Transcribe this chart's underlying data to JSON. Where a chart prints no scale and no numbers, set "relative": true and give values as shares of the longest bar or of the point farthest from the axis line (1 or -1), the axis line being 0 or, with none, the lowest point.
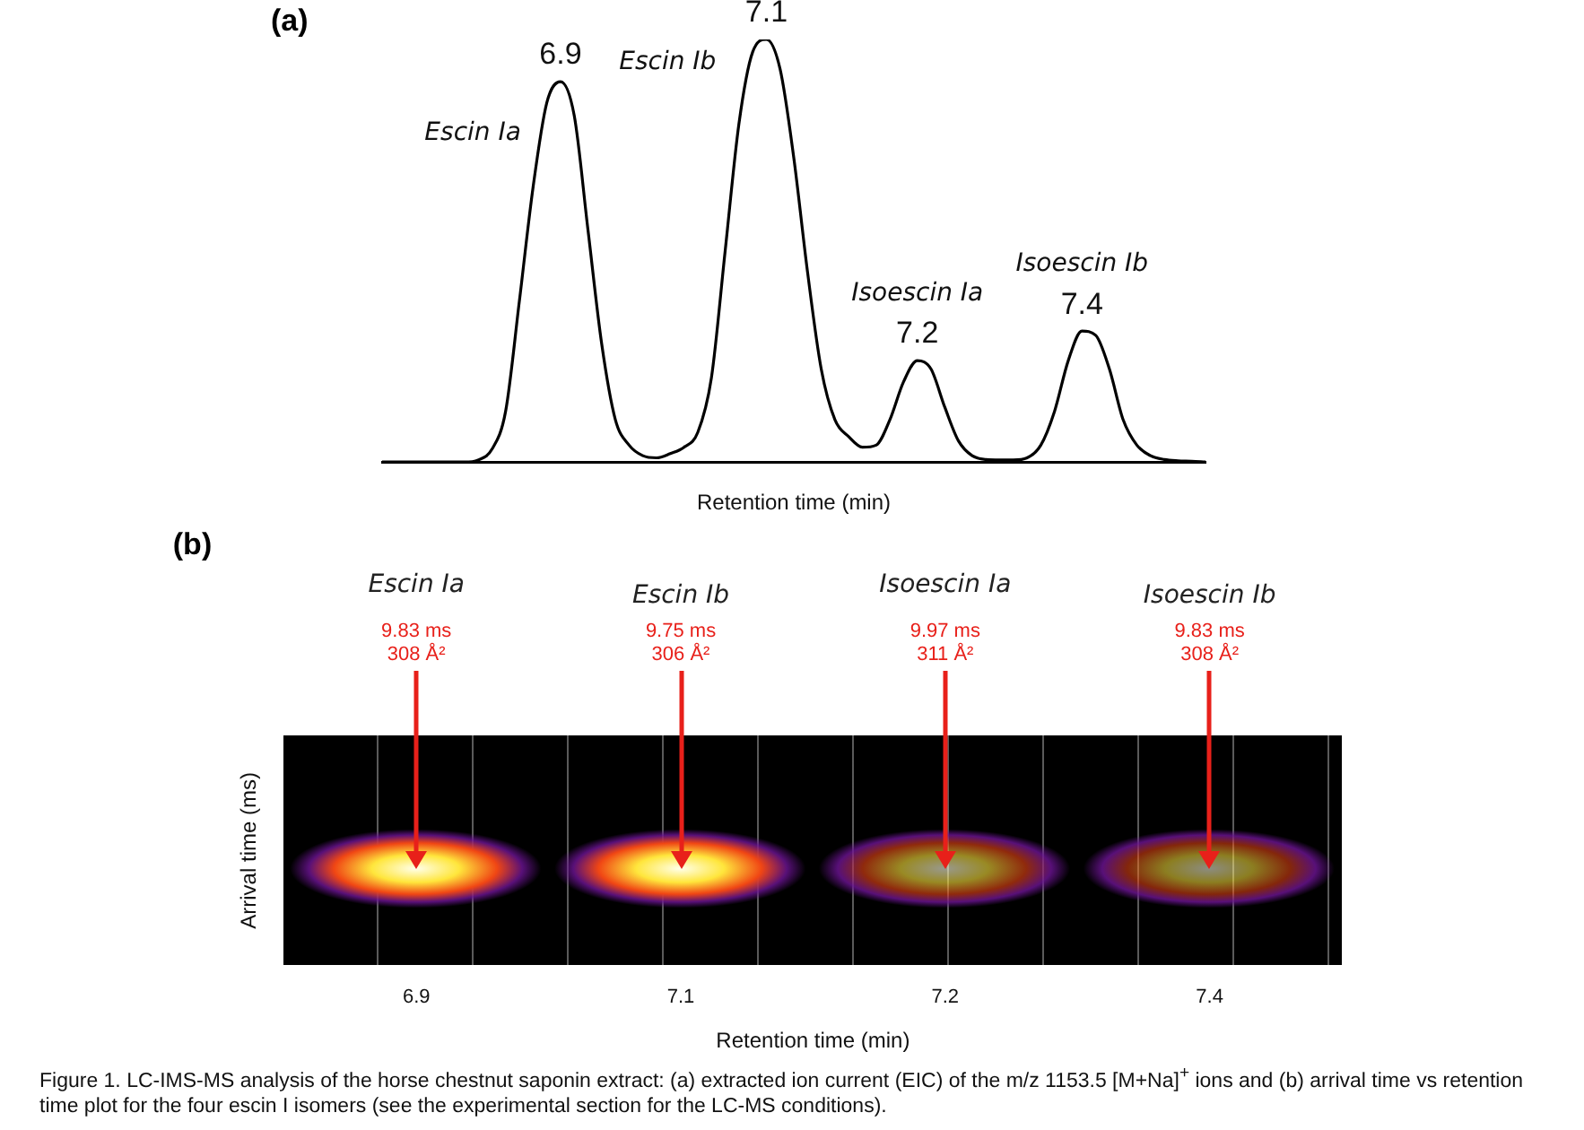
{
  "chart_data": [
    {
      "type": "line",
      "title": "(a)",
      "xlabel": "Retention time (min)",
      "relative": true,
      "tick_labels": false,
      "categories": [
        null,
        null,
        null,
        null,
        null,
        null,
        null,
        null,
        null,
        null,
        null,
        null,
        null,
        null,
        null,
        null,
        null,
        null,
        null,
        null,
        null,
        null,
        null,
        null,
        null,
        null,
        null,
        null,
        null,
        null,
        null,
        null,
        null,
        null,
        null,
        null,
        null,
        null,
        null,
        null,
        null,
        null,
        null,
        null,
        null,
        null,
        null,
        null,
        null,
        null,
        null,
        null,
        null,
        null,
        null,
        null,
        null,
        null,
        null,
        null,
        null
      ],
      "series": [
        {
          "color": "#000000",
          "values": [
            0,
            0,
            0,
            0,
            0,
            0,
            0,
            0.005,
            0.03,
            0.12,
            0.38,
            0.65,
            0.85,
            0.9,
            0.82,
            0.55,
            0.28,
            0.1,
            0.04,
            0.015,
            0.01,
            0.02,
            0.035,
            0.07,
            0.2,
            0.5,
            0.8,
            0.97,
            1,
            0.93,
            0.72,
            0.45,
            0.22,
            0.1,
            0.06,
            0.035,
            0.04,
            0.1,
            0.19,
            0.24,
            0.22,
            0.13,
            0.05,
            0.015,
            0.006,
            0.005,
            0.005,
            0.01,
            0.04,
            0.12,
            0.24,
            0.31,
            0.3,
            0.22,
            0.1,
            0.04,
            0.015,
            0.006,
            0.003,
            0.002,
            0
          ]
        }
      ],
      "annotations": [
        "Escin Ia",
        "6.9",
        "Escin Ib",
        "7.1",
        "Isoescin Ia",
        "7.2",
        "Isoescin Ib",
        "7.4"
      ]
    },
    {
      "type": "other",
      "title": "(b)",
      "xlabel": "Retention time (min)",
      "ylabel": "Arrival time (ms)",
      "categories": [
        "6.9",
        "7.1",
        "7.2",
        "7.4"
      ],
      "annotations": [
        "Escin Ia",
        "9.83 ms",
        "308 Å²",
        "Escin Ib",
        "9.75 ms",
        "306 Å²",
        "Isoescin Ia",
        "9.97 ms",
        "311 Å²",
        "Isoescin Ib",
        "9.83 ms",
        "308 Å²",
        "Figure 1.  LC-IMS-MS analysis of the horse chestnut saponin extract: (a) extracted ion current (EIC) of the m/z 1153.5 [M+Na]$^{+}$ ions and (b) arrival time vs retention time plot for the four escin I isomers (see the experimental section for the LC-MS conditions)."
      ]
    }
  ]
}
